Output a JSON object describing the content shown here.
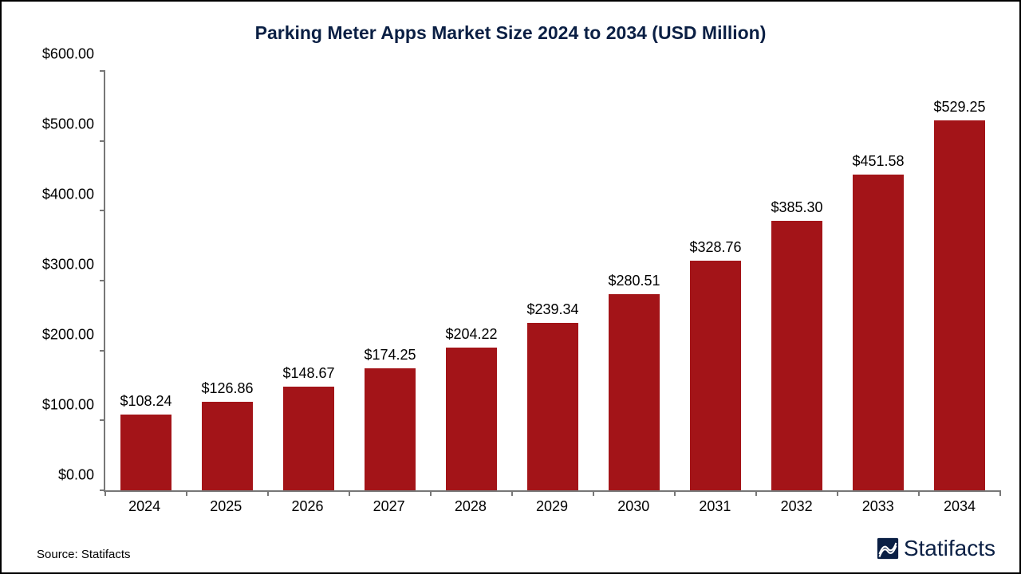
{
  "chart": {
    "type": "bar",
    "title": "Parking Meter Apps Market Size 2024 to 2034 (USD Million)",
    "title_color": "#0a1f44",
    "title_fontsize": 23,
    "background_color": "#ffffff",
    "border_color": "#000000",
    "axis_color": "#777777",
    "bar_color": "#a31418",
    "bar_width_ratio": 0.62,
    "label_fontsize": 18,
    "ylim": [
      0,
      600
    ],
    "ytick_step": 100,
    "yticks": [
      "$0.00",
      "$100.00",
      "$200.00",
      "$300.00",
      "$400.00",
      "$500.00",
      "$600.00"
    ],
    "categories": [
      "2024",
      "2025",
      "2026",
      "2027",
      "2028",
      "2029",
      "2030",
      "2031",
      "2032",
      "2033",
      "2034"
    ],
    "values": [
      108.24,
      126.86,
      148.67,
      174.25,
      204.22,
      239.34,
      280.51,
      328.76,
      385.3,
      451.58,
      529.25
    ],
    "value_labels": [
      "$108.24",
      "$126.86",
      "$148.67",
      "$174.25",
      "$204.22",
      "$239.34",
      "$280.51",
      "$328.76",
      "$385.30",
      "$451.58",
      "$529.25"
    ]
  },
  "footer": {
    "source": "Source: Statifacts",
    "brand": "Statifacts",
    "brand_color": "#0a1f44"
  }
}
